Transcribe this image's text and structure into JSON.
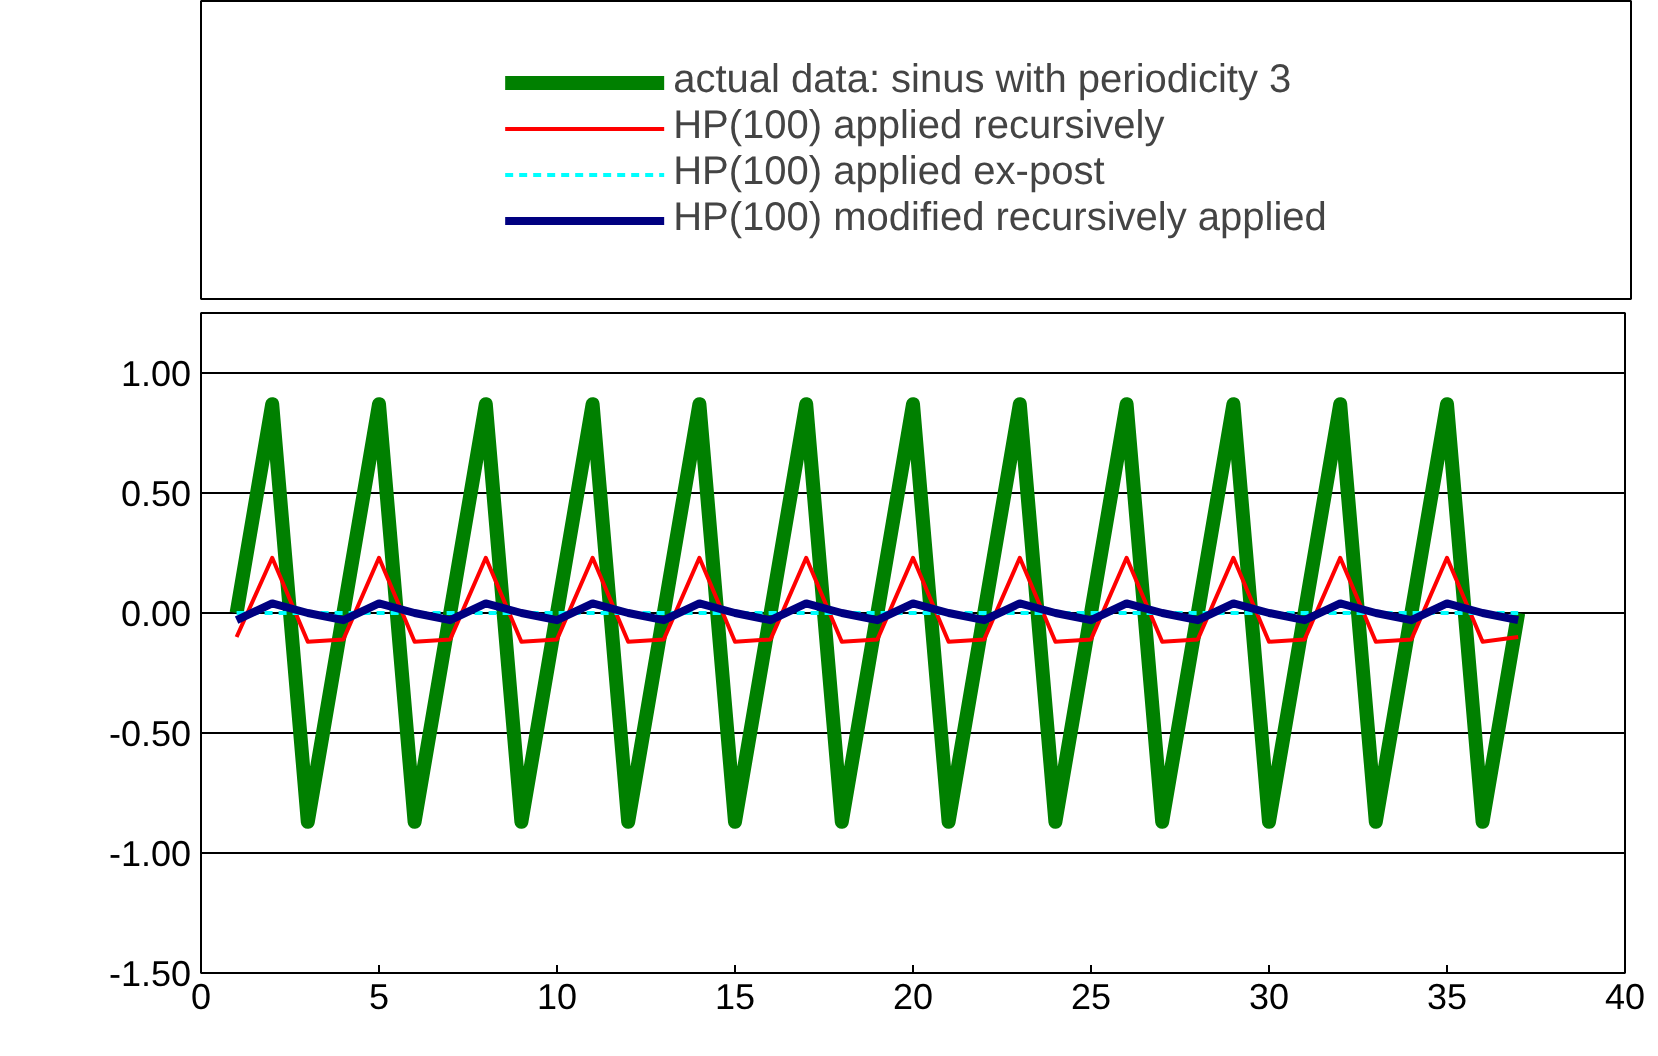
{
  "chart_data": {
    "type": "line",
    "x": [
      1,
      2,
      3,
      4,
      5,
      6,
      7,
      8,
      9,
      10,
      11,
      12,
      13,
      14,
      15,
      16,
      17,
      18,
      19,
      20,
      21,
      22,
      23,
      24,
      25,
      26,
      27,
      28,
      29,
      30,
      31,
      32,
      33,
      34,
      35,
      36,
      37
    ],
    "series": [
      {
        "name": "actual data: sinus with periodicity 3",
        "color": "#008000",
        "values": [
          0,
          0.87,
          -0.87,
          0,
          0.87,
          -0.87,
          0,
          0.87,
          -0.87,
          0,
          0.87,
          -0.87,
          0,
          0.87,
          -0.87,
          0,
          0.87,
          -0.87,
          0,
          0.87,
          -0.87,
          0,
          0.87,
          -0.87,
          0,
          0.87,
          -0.87,
          0,
          0.87,
          -0.87,
          0,
          0.87,
          -0.87,
          0,
          0.87,
          -0.87,
          0
        ]
      },
      {
        "name": "HP(100) applied recursively",
        "color": "#ff0000",
        "values": [
          -0.1,
          0.23,
          -0.12,
          -0.11,
          0.23,
          -0.12,
          -0.11,
          0.23,
          -0.12,
          -0.11,
          0.23,
          -0.12,
          -0.11,
          0.23,
          -0.12,
          -0.11,
          0.23,
          -0.12,
          -0.11,
          0.23,
          -0.12,
          -0.11,
          0.23,
          -0.12,
          -0.11,
          0.23,
          -0.12,
          -0.11,
          0.23,
          -0.12,
          -0.11,
          0.23,
          -0.12,
          -0.11,
          0.23,
          -0.12,
          -0.1
        ]
      },
      {
        "name": "HP(100) applied ex-post",
        "color": "#00ffff",
        "line_style": "dashed",
        "values": [
          0,
          0,
          0,
          0,
          0,
          0,
          0,
          0,
          0,
          0,
          0,
          0,
          0,
          0,
          0,
          0,
          0,
          0,
          0,
          0,
          0,
          0,
          0,
          0,
          0,
          0,
          0,
          0,
          0,
          0,
          0,
          0,
          0,
          0,
          0,
          0,
          0
        ]
      },
      {
        "name": "HP(100) modified recursively applied",
        "color": "#000080",
        "values": [
          -0.03,
          0.04,
          0.0,
          -0.03,
          0.04,
          0.0,
          -0.03,
          0.04,
          0.0,
          -0.03,
          0.04,
          0.0,
          -0.03,
          0.04,
          0.0,
          -0.03,
          0.04,
          0.0,
          -0.03,
          0.04,
          0.0,
          -0.03,
          0.04,
          0.0,
          -0.03,
          0.04,
          0.0,
          -0.03,
          0.04,
          0.0,
          -0.03,
          0.04,
          0.0,
          -0.03,
          0.04,
          0.0,
          -0.03
        ]
      }
    ],
    "xlim": [
      0,
      40
    ],
    "xticks": [
      0,
      5,
      10,
      15,
      20,
      25,
      30,
      35,
      40
    ],
    "ylim": [
      -1.5,
      1.25
    ],
    "yticks": [
      {
        "value": -1.5,
        "label": "-1.50"
      },
      {
        "value": -1,
        "label": "-1.00"
      },
      {
        "value": -0.5,
        "label": "-0.50"
      },
      {
        "value": 0,
        "label": "0.00"
      },
      {
        "value": 0.5,
        "label": "0.50"
      },
      {
        "value": 1,
        "label": "1.00"
      }
    ],
    "grid": "y",
    "legend": "top",
    "marker": "none",
    "line_style": "solid"
  }
}
